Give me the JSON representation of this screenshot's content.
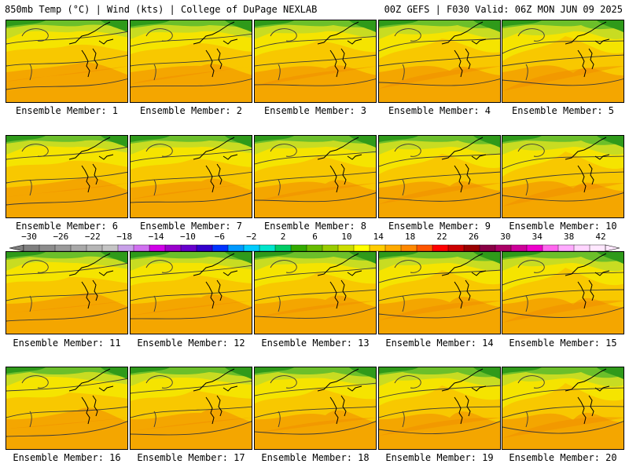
{
  "header": {
    "left": "850mb Temp (°C) | Wind (kts) | College of DuPage NEXLAB",
    "right": "00Z GEFS | F030 Valid: 06Z MON JUN 09 2025"
  },
  "members": [
    "Ensemble Member: 1",
    "Ensemble Member: 2",
    "Ensemble Member: 3",
    "Ensemble Member: 4",
    "Ensemble Member: 5",
    "Ensemble Member: 6",
    "Ensemble Member: 7",
    "Ensemble Member: 8",
    "Ensemble Member: 9",
    "Ensemble Member: 10",
    "Ensemble Member: 11",
    "Ensemble Member: 12",
    "Ensemble Member: 13",
    "Ensemble Member: 14",
    "Ensemble Member: 15",
    "Ensemble Member: 16",
    "Ensemble Member: 17",
    "Ensemble Member: 18",
    "Ensemble Member: 19",
    "Ensemble Member: 20"
  ],
  "colorbar": {
    "labels": [
      "−30",
      "−26",
      "−22",
      "−18",
      "−14",
      "−10",
      "−6",
      "−2",
      "2",
      "6",
      "10",
      "14",
      "18",
      "22",
      "26",
      "30",
      "34",
      "38",
      "42"
    ],
    "colors": [
      "#7f7f7f",
      "#8c8c8c",
      "#9a9a9a",
      "#a8a8a8",
      "#b5b5b5",
      "#c4c4c4",
      "#c8a0e8",
      "#d070f0",
      "#d000e8",
      "#9900cc",
      "#6600cc",
      "#3300cc",
      "#0033ff",
      "#0099ff",
      "#00ccff",
      "#00e5cc",
      "#00cc66",
      "#33aa00",
      "#66bb00",
      "#99cc00",
      "#ccdd00",
      "#ffff00",
      "#ffcc00",
      "#ffaa00",
      "#ff8800",
      "#ff5500",
      "#ff0000",
      "#cc0000",
      "#990000",
      "#880044",
      "#aa0066",
      "#cc0099",
      "#ee00cc",
      "#ff66ee",
      "#ffaaff",
      "#ffd5ff",
      "#ffe8ff"
    ]
  },
  "map_colors": {
    "green_dark": "#2f9a1a",
    "green": "#6cbf2a",
    "yellow_green": "#c8dc22",
    "yellow": "#f5e400",
    "gold": "#f8c800",
    "orange": "#f4a600",
    "deep_orange": "#f08a00"
  }
}
